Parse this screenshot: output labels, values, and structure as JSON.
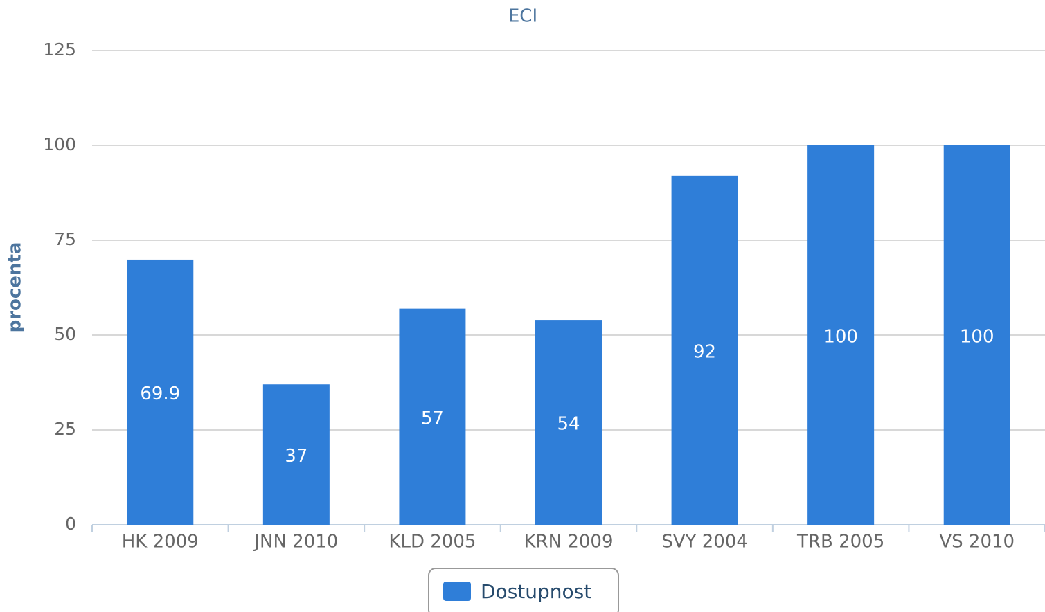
{
  "chart_data": {
    "type": "bar",
    "title": "ECI",
    "y_label": "procenta",
    "categories": [
      "HK 2009",
      "JNN 2010",
      "KLD 2005",
      "KRN 2009",
      "SVY 2004",
      "TRB 2005",
      "VS 2010"
    ],
    "series": [
      {
        "name": "Dostupnost",
        "color": "#2f7ed8",
        "values": [
          69.9,
          37,
          57,
          54,
          92,
          100,
          100
        ]
      }
    ],
    "ylim": [
      0,
      125
    ],
    "yticks": [
      0,
      25,
      50,
      75,
      100,
      125
    ],
    "grid": true,
    "legend": "bottom"
  }
}
